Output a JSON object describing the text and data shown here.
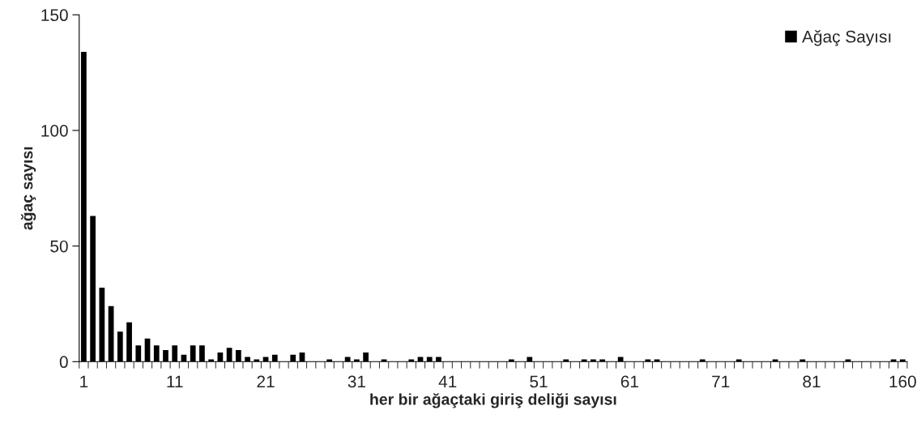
{
  "chart_data": {
    "type": "bar",
    "xlabel": "her bir ağaçtaki giriş deliği sayısı",
    "ylabel": "ağaç sayısı",
    "categories": [
      "1",
      null,
      null,
      null,
      null,
      null,
      null,
      null,
      null,
      null,
      "11",
      null,
      null,
      null,
      null,
      null,
      null,
      null,
      null,
      null,
      "21",
      null,
      null,
      null,
      null,
      null,
      null,
      null,
      null,
      null,
      "31",
      null,
      null,
      null,
      null,
      null,
      null,
      null,
      null,
      null,
      "41",
      null,
      null,
      null,
      null,
      null,
      null,
      null,
      null,
      null,
      "51",
      null,
      null,
      null,
      null,
      null,
      null,
      null,
      null,
      null,
      "61",
      null,
      null,
      null,
      null,
      null,
      null,
      null,
      null,
      null,
      "71",
      null,
      null,
      null,
      null,
      null,
      null,
      null,
      null,
      null,
      "81",
      null,
      null,
      null,
      null,
      null,
      null,
      null,
      null,
      null,
      "160"
    ],
    "series": [
      {
        "name": "Ağaç Sayısı",
        "color": "#000000",
        "values": [
          134,
          63,
          32,
          24,
          13,
          17,
          7,
          10,
          7,
          5,
          7,
          3,
          7,
          7,
          1,
          4,
          6,
          5,
          2,
          1,
          2,
          3,
          0,
          3,
          4,
          0,
          0,
          1,
          0,
          2,
          1,
          4,
          0,
          1,
          0,
          0,
          1,
          2,
          2,
          2,
          0,
          0,
          0,
          0,
          0,
          0,
          0,
          1,
          0,
          2,
          0,
          0,
          0,
          1,
          0,
          1,
          1,
          1,
          0,
          2,
          0,
          0,
          1,
          1,
          0,
          0,
          0,
          0,
          1,
          0,
          0,
          0,
          1,
          0,
          0,
          0,
          1,
          0,
          0,
          1,
          0,
          0,
          0,
          0,
          1,
          0,
          0,
          0,
          0,
          1,
          1
        ]
      }
    ],
    "ylim": [
      0,
      150
    ],
    "yticks": [
      0,
      50,
      100,
      150
    ],
    "grid": false,
    "legend": "top right"
  }
}
